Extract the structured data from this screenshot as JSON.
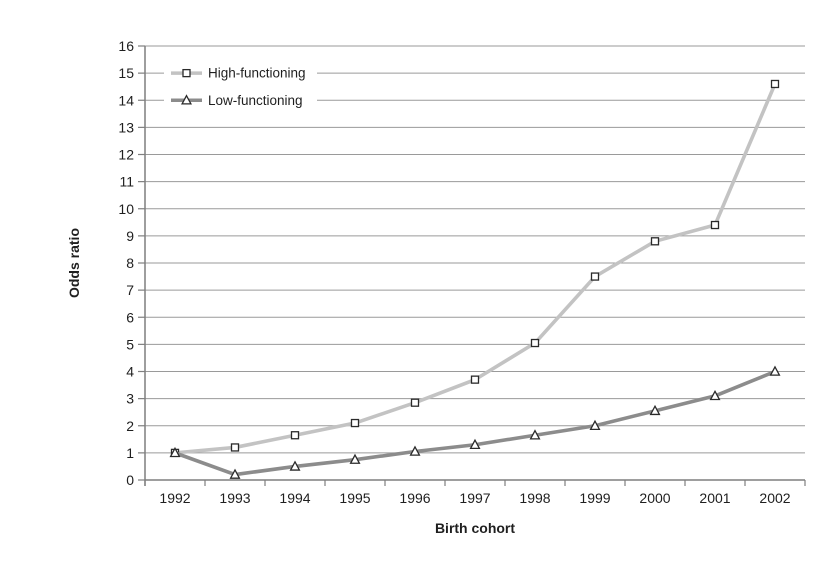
{
  "chart_data": {
    "type": "line",
    "title": "",
    "xlabel": "Birth cohort",
    "ylabel": "Odds ratio",
    "categories": [
      "1992",
      "1993",
      "1994",
      "1995",
      "1996",
      "1997",
      "1998",
      "1999",
      "2000",
      "2001",
      "2002"
    ],
    "ylim": [
      0,
      16
    ],
    "y_tick_step": 1,
    "y_tick_labels": [
      "0",
      "1",
      "2",
      "3",
      "4",
      "5",
      "6",
      "7",
      "8",
      "9",
      "10",
      "11",
      "12",
      "13",
      "14",
      "15",
      "16"
    ],
    "grid": "horizontal",
    "legend_position": "top-left-inside",
    "series": [
      {
        "name": "High-functioning",
        "marker": "square",
        "line_color": "#c3c3c3",
        "marker_fill": "#ffffff",
        "marker_stroke": "#2a2a2a",
        "values": [
          1.0,
          1.2,
          1.65,
          2.1,
          2.85,
          3.7,
          5.05,
          7.5,
          8.8,
          9.4,
          14.6
        ]
      },
      {
        "name": "Low-functioning",
        "marker": "triangle",
        "line_color": "#8c8c8c",
        "marker_fill": "#ffffff",
        "marker_stroke": "#2a2a2a",
        "values": [
          1.0,
          0.2,
          0.5,
          0.75,
          1.05,
          1.3,
          1.65,
          2.0,
          2.55,
          3.1,
          4.0
        ]
      }
    ]
  },
  "colors": {
    "background": "#ffffff",
    "gridline": "#9a9a9a",
    "axis": "#7f7f7f",
    "text": "#1f1f1f",
    "legend_background": "#ffffff"
  }
}
